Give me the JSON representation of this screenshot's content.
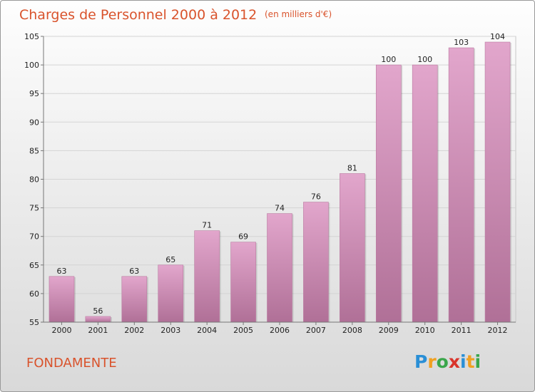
{
  "chart_data": {
    "type": "bar",
    "title": "Charges de Personnel 2000 à 2012",
    "subtitle": "(en milliers d'€)",
    "categories": [
      "2000",
      "2001",
      "2002",
      "2003",
      "2004",
      "2005",
      "2006",
      "2007",
      "2008",
      "2009",
      "2010",
      "2011",
      "2012"
    ],
    "values": [
      63,
      56,
      63,
      65,
      71,
      69,
      74,
      76,
      81,
      100,
      100,
      103,
      104
    ],
    "yticks": [
      55,
      60,
      65,
      70,
      75,
      80,
      85,
      90,
      95,
      100,
      105
    ],
    "ylim": [
      55,
      105
    ],
    "grid": true,
    "bar_color_top": "#e2a6cc",
    "bar_color_bottom": "#b07097"
  },
  "footer": {
    "town": "FONDAMENTE",
    "logo_letters": [
      {
        "ch": "P",
        "color": "#2a8fd6"
      },
      {
        "ch": "r",
        "color": "#f0a020"
      },
      {
        "ch": "o",
        "color": "#3aa64b"
      },
      {
        "ch": "x",
        "color": "#d9342b"
      },
      {
        "ch": "i",
        "color": "#2a8fd6"
      },
      {
        "ch": "t",
        "color": "#f0a020"
      },
      {
        "ch": "i",
        "color": "#3aa64b"
      }
    ]
  }
}
